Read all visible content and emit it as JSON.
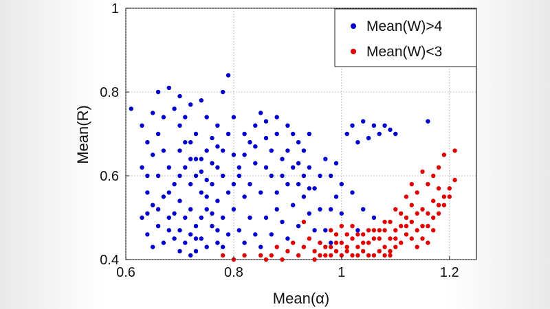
{
  "chart_data": {
    "type": "scatter",
    "xlabel": "Mean(α)",
    "ylabel": "Mean(R)",
    "xlim": [
      0.6,
      1.25
    ],
    "ylim": [
      0.4,
      1.0
    ],
    "x_ticks": [
      0.6,
      0.8,
      1.0,
      1.2
    ],
    "x_tick_labels": [
      "0.6",
      "0.8",
      "1",
      "1.2"
    ],
    "y_ticks": [
      0.4,
      0.6,
      0.8,
      1.0
    ],
    "y_tick_labels": [
      "0.4",
      "0.6",
      "0.8",
      "1"
    ],
    "grid": true,
    "legend_position": "top-right",
    "series": [
      {
        "name": "Mean(W)>4",
        "color": "#0000cc",
        "points": [
          [
            0.61,
            0.76
          ],
          [
            0.79,
            0.84
          ],
          [
            0.66,
            0.8
          ],
          [
            0.68,
            0.81
          ],
          [
            0.7,
            0.79
          ],
          [
            0.65,
            0.75
          ],
          [
            0.72,
            0.77
          ],
          [
            0.74,
            0.78
          ],
          [
            0.75,
            0.74
          ],
          [
            0.77,
            0.72
          ],
          [
            0.78,
            0.8
          ],
          [
            0.63,
            0.72
          ],
          [
            0.64,
            0.68
          ],
          [
            0.63,
            0.62
          ],
          [
            0.64,
            0.56
          ],
          [
            0.63,
            0.5
          ],
          [
            0.64,
            0.46
          ],
          [
            0.65,
            0.43
          ],
          [
            0.66,
            0.7
          ],
          [
            0.67,
            0.66
          ],
          [
            0.68,
            0.62
          ],
          [
            0.69,
            0.58
          ],
          [
            0.7,
            0.54
          ],
          [
            0.71,
            0.5
          ],
          [
            0.72,
            0.46
          ],
          [
            0.73,
            0.42
          ],
          [
            0.7,
            0.72
          ],
          [
            0.71,
            0.68
          ],
          [
            0.72,
            0.64
          ],
          [
            0.73,
            0.6
          ],
          [
            0.74,
            0.56
          ],
          [
            0.75,
            0.52
          ],
          [
            0.76,
            0.48
          ],
          [
            0.77,
            0.44
          ],
          [
            0.66,
            0.6
          ],
          [
            0.67,
            0.55
          ],
          [
            0.68,
            0.5
          ],
          [
            0.69,
            0.45
          ],
          [
            0.7,
            0.42
          ],
          [
            0.72,
            0.52
          ],
          [
            0.73,
            0.48
          ],
          [
            0.74,
            0.45
          ],
          [
            0.75,
            0.43
          ],
          [
            0.76,
            0.58
          ],
          [
            0.77,
            0.62
          ],
          [
            0.78,
            0.66
          ],
          [
            0.79,
            0.7
          ],
          [
            0.8,
            0.65
          ],
          [
            0.81,
            0.6
          ],
          [
            0.82,
            0.55
          ],
          [
            0.83,
            0.5
          ],
          [
            0.84,
            0.46
          ],
          [
            0.85,
            0.43
          ],
          [
            0.86,
            0.62
          ],
          [
            0.87,
            0.66
          ],
          [
            0.88,
            0.7
          ],
          [
            0.89,
            0.64
          ],
          [
            0.9,
            0.58
          ],
          [
            0.91,
            0.53
          ],
          [
            0.92,
            0.48
          ],
          [
            0.93,
            0.66
          ],
          [
            0.94,
            0.62
          ],
          [
            0.95,
            0.57
          ],
          [
            0.96,
            0.52
          ],
          [
            0.97,
            0.47
          ],
          [
            0.98,
            0.44
          ],
          [
            0.99,
            0.63
          ],
          [
            1.0,
            0.58
          ],
          [
            1.01,
            0.7
          ],
          [
            1.02,
            0.72
          ],
          [
            1.03,
            0.68
          ],
          [
            1.04,
            0.73
          ],
          [
            1.05,
            0.69
          ],
          [
            1.06,
            0.72
          ],
          [
            1.07,
            0.7
          ],
          [
            1.08,
            0.72
          ],
          [
            1.09,
            0.71
          ],
          [
            1.1,
            0.7
          ],
          [
            1.16,
            0.73
          ],
          [
            1.02,
            0.56
          ],
          [
            1.04,
            0.52
          ],
          [
            1.06,
            0.5
          ],
          [
            1.03,
            0.47
          ],
          [
            0.98,
            0.52
          ],
          [
            0.96,
            0.6
          ],
          [
            0.94,
            0.7
          ],
          [
            0.92,
            0.68
          ],
          [
            0.9,
            0.72
          ],
          [
            0.88,
            0.74
          ],
          [
            0.86,
            0.69
          ],
          [
            0.84,
            0.63
          ],
          [
            0.82,
            0.7
          ],
          [
            0.8,
            0.74
          ],
          [
            0.76,
            0.69
          ],
          [
            0.74,
            0.64
          ],
          [
            0.72,
            0.58
          ],
          [
            0.7,
            0.6
          ],
          [
            0.68,
            0.56
          ],
          [
            0.66,
            0.52
          ],
          [
            0.64,
            0.6
          ],
          [
            0.65,
            0.65
          ],
          [
            0.67,
            0.74
          ],
          [
            0.69,
            0.76
          ],
          [
            0.71,
            0.74
          ],
          [
            0.73,
            0.7
          ],
          [
            0.75,
            0.66
          ],
          [
            0.77,
            0.54
          ],
          [
            0.78,
            0.5
          ],
          [
            0.79,
            0.46
          ],
          [
            0.8,
            0.52
          ],
          [
            0.81,
            0.47
          ],
          [
            0.82,
            0.44
          ],
          [
            0.83,
            0.58
          ],
          [
            0.84,
            0.67
          ],
          [
            0.85,
            0.56
          ],
          [
            0.86,
            0.5
          ],
          [
            0.87,
            0.46
          ],
          [
            0.88,
            0.52
          ],
          [
            0.89,
            0.49
          ],
          [
            0.9,
            0.45
          ],
          [
            0.91,
            0.62
          ],
          [
            0.92,
            0.58
          ],
          [
            0.93,
            0.55
          ],
          [
            0.94,
            0.51
          ],
          [
            0.95,
            0.47
          ],
          [
            0.96,
            0.44
          ],
          [
            0.97,
            0.64
          ],
          [
            0.98,
            0.6
          ],
          [
            0.99,
            0.55
          ],
          [
            1.0,
            0.51
          ],
          [
            0.7,
            0.47
          ],
          [
            0.71,
            0.44
          ],
          [
            0.72,
            0.41
          ],
          [
            0.73,
            0.45
          ],
          [
            0.74,
            0.5
          ],
          [
            0.75,
            0.55
          ],
          [
            0.76,
            0.51
          ],
          [
            0.77,
            0.47
          ],
          [
            0.78,
            0.43
          ],
          [
            0.69,
            0.51
          ],
          [
            0.68,
            0.47
          ],
          [
            0.67,
            0.44
          ],
          [
            0.66,
            0.48
          ],
          [
            0.65,
            0.53
          ],
          [
            0.64,
            0.51
          ],
          [
            0.7,
            0.66
          ],
          [
            0.71,
            0.62
          ],
          [
            0.72,
            0.68
          ],
          [
            0.73,
            0.64
          ],
          [
            0.74,
            0.61
          ],
          [
            0.75,
            0.59
          ],
          [
            0.76,
            0.63
          ],
          [
            0.77,
            0.67
          ],
          [
            0.78,
            0.6
          ],
          [
            0.79,
            0.56
          ],
          [
            0.8,
            0.58
          ],
          [
            0.81,
            0.62
          ],
          [
            0.82,
            0.65
          ],
          [
            0.83,
            0.68
          ],
          [
            0.84,
            0.72
          ],
          [
            0.85,
            0.75
          ],
          [
            0.86,
            0.73
          ],
          [
            0.87,
            0.6
          ],
          [
            0.88,
            0.56
          ],
          [
            0.89,
            0.6
          ],
          [
            0.9,
            0.66
          ],
          [
            0.91,
            0.7
          ],
          [
            0.92,
            0.63
          ],
          [
            0.93,
            0.6
          ],
          [
            0.94,
            0.57
          ]
        ]
      },
      {
        "name": "Mean(W)<3",
        "color": "#e00000",
        "points": [
          [
            1.21,
            0.66
          ],
          [
            1.19,
            0.65
          ],
          [
            1.18,
            0.62
          ],
          [
            1.17,
            0.6
          ],
          [
            1.2,
            0.57
          ],
          [
            1.19,
            0.55
          ],
          [
            1.18,
            0.53
          ],
          [
            1.16,
            0.58
          ],
          [
            1.15,
            0.61
          ],
          [
            1.14,
            0.56
          ],
          [
            1.13,
            0.53
          ],
          [
            1.12,
            0.5
          ],
          [
            1.11,
            0.48
          ],
          [
            1.1,
            0.52
          ],
          [
            1.09,
            0.49
          ],
          [
            1.08,
            0.47
          ],
          [
            1.07,
            0.45
          ],
          [
            1.06,
            0.47
          ],
          [
            1.05,
            0.44
          ],
          [
            1.04,
            0.46
          ],
          [
            1.03,
            0.43
          ],
          [
            1.02,
            0.45
          ],
          [
            1.01,
            0.42
          ],
          [
            1.0,
            0.44
          ],
          [
            0.99,
            0.46
          ],
          [
            0.98,
            0.43
          ],
          [
            0.97,
            0.41
          ],
          [
            0.96,
            0.44
          ],
          [
            0.95,
            0.42
          ],
          [
            0.94,
            0.45
          ],
          [
            0.93,
            0.43
          ],
          [
            0.92,
            0.41
          ],
          [
            0.91,
            0.44
          ],
          [
            0.9,
            0.42
          ],
          [
            0.89,
            0.4
          ],
          [
            0.88,
            0.43
          ],
          [
            0.87,
            0.41
          ],
          [
            0.86,
            0.4
          ],
          [
            0.85,
            0.41
          ],
          [
            0.82,
            0.41
          ],
          [
            0.8,
            0.4
          ],
          [
            0.78,
            0.41
          ],
          [
            0.93,
            0.49
          ],
          [
            1.12,
            0.55
          ],
          [
            1.13,
            0.58
          ],
          [
            1.14,
            0.51
          ],
          [
            1.15,
            0.48
          ],
          [
            1.16,
            0.51
          ],
          [
            1.17,
            0.54
          ],
          [
            1.18,
            0.57
          ],
          [
            1.11,
            0.44
          ],
          [
            1.1,
            0.45
          ],
          [
            1.09,
            0.42
          ],
          [
            1.08,
            0.43
          ],
          [
            1.07,
            0.42
          ],
          [
            1.06,
            0.41
          ],
          [
            1.05,
            0.41
          ],
          [
            1.04,
            0.42
          ],
          [
            1.03,
            0.41
          ],
          [
            1.02,
            0.41
          ],
          [
            1.01,
            0.43
          ],
          [
            1.0,
            0.41
          ],
          [
            0.99,
            0.42
          ],
          [
            0.98,
            0.41
          ],
          [
            0.97,
            0.43
          ],
          [
            0.96,
            0.41
          ],
          [
            0.95,
            0.4
          ],
          [
            1.12,
            0.46
          ],
          [
            1.13,
            0.49
          ],
          [
            1.14,
            0.47
          ],
          [
            1.15,
            0.52
          ],
          [
            1.16,
            0.48
          ],
          [
            1.17,
            0.5
          ],
          [
            1.18,
            0.51
          ],
          [
            1.19,
            0.53
          ],
          [
            1.2,
            0.55
          ],
          [
            1.21,
            0.59
          ],
          [
            1.1,
            0.47
          ],
          [
            1.09,
            0.45
          ],
          [
            1.08,
            0.49
          ],
          [
            1.07,
            0.47
          ],
          [
            1.06,
            0.45
          ],
          [
            1.05,
            0.47
          ],
          [
            1.04,
            0.44
          ],
          [
            1.03,
            0.46
          ],
          [
            1.02,
            0.48
          ],
          [
            1.01,
            0.46
          ],
          [
            1.0,
            0.48
          ],
          [
            0.99,
            0.44
          ],
          [
            0.98,
            0.47
          ],
          [
            1.11,
            0.51
          ],
          [
            1.12,
            0.48
          ],
          [
            1.13,
            0.45
          ],
          [
            1.14,
            0.43
          ],
          [
            1.15,
            0.45
          ],
          [
            1.16,
            0.44
          ],
          [
            1.17,
            0.47
          ],
          [
            1.1,
            0.43
          ],
          [
            1.09,
            0.41
          ],
          [
            1.08,
            0.41
          ]
        ]
      }
    ]
  }
}
